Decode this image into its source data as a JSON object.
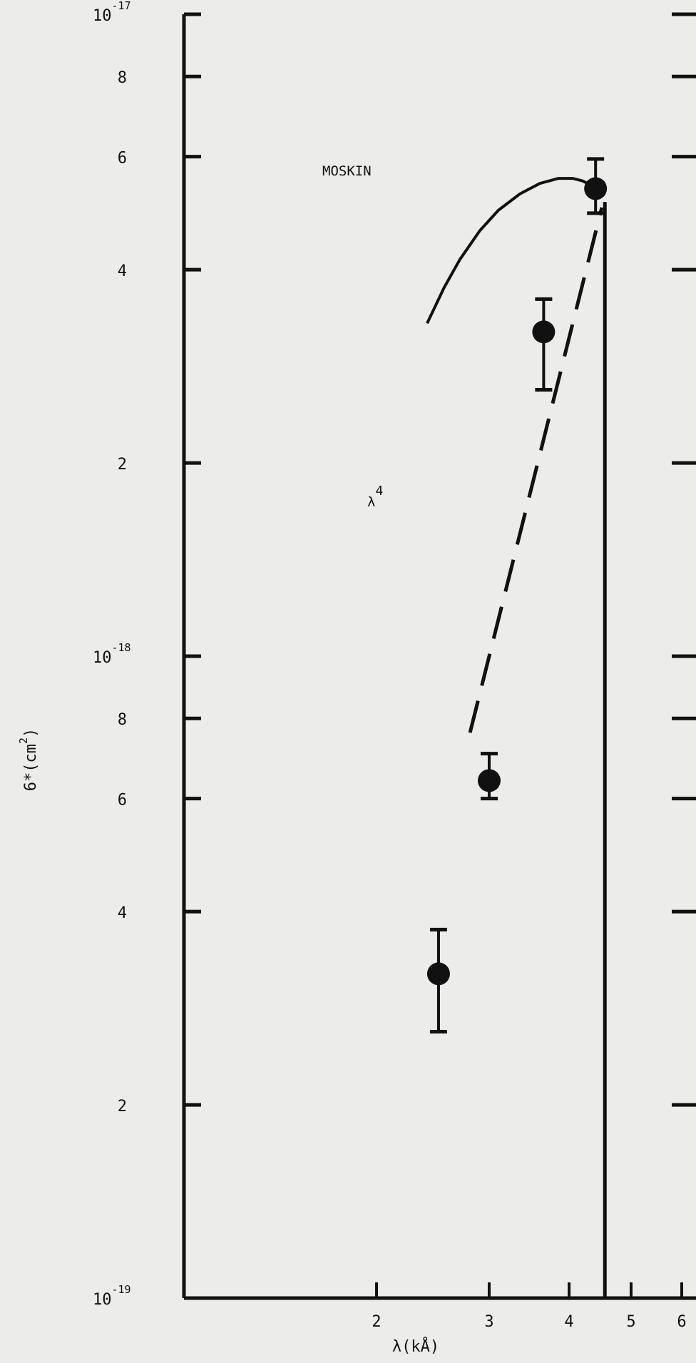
{
  "chart_data": {
    "type": "scatter",
    "xlabel": "λ(kÅ)",
    "ylabel_base": "6*(cm",
    "ylabel_exp": "2",
    "ylabel_close": ")",
    "xscale": "log",
    "yscale": "log",
    "xlim": [
      1.0,
      6.0
    ],
    "ylim": [
      1e-19,
      1e-17
    ],
    "x_ticks": [
      {
        "value": 2,
        "label": "2"
      },
      {
        "value": 3,
        "label": "3"
      },
      {
        "value": 4,
        "label": "4"
      },
      {
        "value": 5,
        "label": "5"
      },
      {
        "value": 6,
        "label": "6"
      }
    ],
    "y_ticks": [
      {
        "value": 1e-17,
        "base": "10",
        "exp": "-17"
      },
      {
        "value": 8e-18,
        "base": "8",
        "exp": ""
      },
      {
        "value": 6e-18,
        "base": "6",
        "exp": ""
      },
      {
        "value": 4e-18,
        "base": "4",
        "exp": ""
      },
      {
        "value": 2e-18,
        "base": "2",
        "exp": ""
      },
      {
        "value": 1e-18,
        "base": "10",
        "exp": "-18"
      },
      {
        "value": 8e-19,
        "base": "8",
        "exp": ""
      },
      {
        "value": 6e-19,
        "base": "6",
        "exp": ""
      },
      {
        "value": 4e-19,
        "base": "4",
        "exp": ""
      },
      {
        "value": 2e-19,
        "base": "2",
        "exp": ""
      },
      {
        "value": 1e-19,
        "base": "10",
        "exp": "-19"
      }
    ],
    "points": [
      {
        "x": 2.5,
        "y": 3.2e-19,
        "ylo": 2.6e-19,
        "yhi": 3.75e-19
      },
      {
        "x": 3.0,
        "y": 6.4e-19,
        "ylo": 6e-19,
        "yhi": 7.05e-19
      },
      {
        "x": 3.65,
        "y": 3.2e-18,
        "ylo": 2.6e-18,
        "yhi": 3.6e-18
      },
      {
        "x": 4.4,
        "y": 5.35e-18,
        "ylo": 4.9e-18,
        "yhi": 5.95e-18
      }
    ],
    "solid_curve": {
      "label": "MOSKIN",
      "x": [
        2.4,
        2.55,
        2.7,
        2.9,
        3.1,
        3.35,
        3.6,
        3.85,
        4.05,
        4.2,
        4.35
      ],
      "y": [
        3.3e-18,
        3.75e-18,
        4.15e-18,
        4.6e-18,
        4.95e-18,
        5.25e-18,
        5.45e-18,
        5.55e-18,
        5.55e-18,
        5.5e-18,
        5.4e-18
      ]
    },
    "dashed_line": {
      "label_base": "λ",
      "label_exp": "4",
      "x": [
        2.8,
        4.5
      ],
      "y": [
        7.6e-19,
        5e-18
      ]
    },
    "vertical_line_x": 4.55,
    "grid": false
  }
}
